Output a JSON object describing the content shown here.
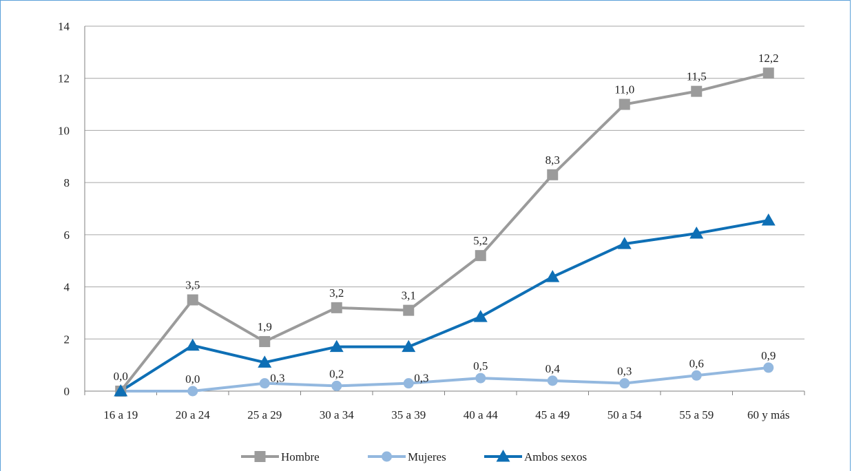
{
  "chart_data": {
    "type": "line",
    "title": "",
    "xlabel": "",
    "ylabel": "",
    "categories": [
      "16 a 19",
      "20 a 24",
      "25 a 29",
      "30 a 34",
      "35 a 39",
      "40 a 44",
      "45 a 49",
      "50 a 54",
      "55 a 59",
      "60 y más"
    ],
    "ylim": [
      0,
      14
    ],
    "yticks": [
      0,
      2,
      4,
      6,
      8,
      10,
      12,
      14
    ],
    "grid": true,
    "legend_position": "bottom",
    "series": [
      {
        "name": "Hombre",
        "color": "#9b9b9b",
        "marker": "square",
        "values": [
          0.0,
          3.5,
          1.9,
          3.2,
          3.1,
          5.2,
          8.3,
          11.0,
          11.5,
          12.2
        ],
        "labels": [
          "0,0",
          "3,5",
          "1,9",
          "3,2",
          "3,1",
          "5,2",
          "8,3",
          "11,0",
          "11,5",
          "12,2"
        ]
      },
      {
        "name": "Mujeres",
        "color": "#93b8df",
        "marker": "circle",
        "values": [
          0.0,
          0.0,
          0.3,
          0.2,
          0.3,
          0.5,
          0.4,
          0.3,
          0.6,
          0.9
        ],
        "labels": [
          "",
          "0,0",
          "0,3",
          "0,2",
          "0,3",
          "0,5",
          "0,4",
          "0,3",
          "0,6",
          "0,9"
        ]
      },
      {
        "name": "Ambos sexos",
        "color": "#0e6fb5",
        "marker": "triangle",
        "values": [
          0.0,
          1.75,
          1.1,
          1.7,
          1.7,
          2.85,
          4.38,
          5.65,
          6.05,
          6.55
        ],
        "labels": []
      }
    ]
  }
}
